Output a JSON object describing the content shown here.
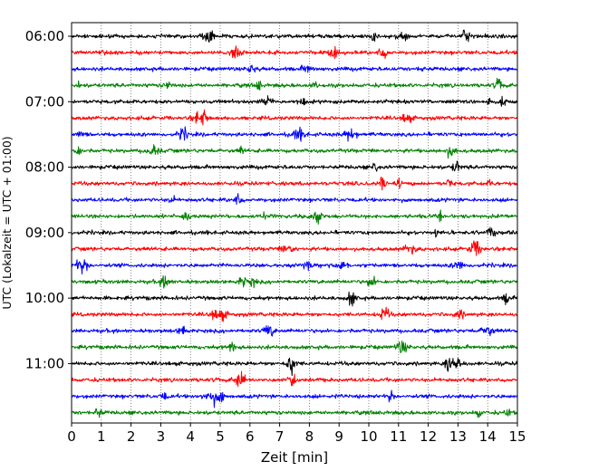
{
  "chart_data": {
    "type": "line",
    "xlabel": "Zeit  [min]",
    "ylabel": "UTC (Lokalzeit = UTC + 01:00)",
    "xlim": [
      0,
      15
    ],
    "x_ticks": [
      "0",
      "1",
      "2",
      "3",
      "4",
      "5",
      "6",
      "7",
      "8",
      "9",
      "10",
      "11",
      "12",
      "13",
      "14",
      "15"
    ],
    "y_tick_labels": [
      "06:00",
      "07:00",
      "08:00",
      "09:00",
      "10:00",
      "11:00"
    ],
    "grid": "vertical dotted",
    "trace_interval_minutes": 15,
    "color_cycle": [
      "#000000",
      "#ff0000",
      "#0000ff",
      "#008000"
    ],
    "traces": [
      {
        "start": "06:00",
        "color": "#000000"
      },
      {
        "start": "06:15",
        "color": "#ff0000"
      },
      {
        "start": "06:30",
        "color": "#0000ff"
      },
      {
        "start": "06:45",
        "color": "#008000"
      },
      {
        "start": "07:00",
        "color": "#000000"
      },
      {
        "start": "07:15",
        "color": "#ff0000"
      },
      {
        "start": "07:30",
        "color": "#0000ff"
      },
      {
        "start": "07:45",
        "color": "#008000"
      },
      {
        "start": "08:00",
        "color": "#000000"
      },
      {
        "start": "08:15",
        "color": "#ff0000"
      },
      {
        "start": "08:30",
        "color": "#0000ff"
      },
      {
        "start": "08:45",
        "color": "#008000"
      },
      {
        "start": "09:00",
        "color": "#000000"
      },
      {
        "start": "09:15",
        "color": "#ff0000"
      },
      {
        "start": "09:30",
        "color": "#0000ff"
      },
      {
        "start": "09:45",
        "color": "#008000"
      },
      {
        "start": "10:00",
        "color": "#000000"
      },
      {
        "start": "10:15",
        "color": "#ff0000"
      },
      {
        "start": "10:30",
        "color": "#0000ff"
      },
      {
        "start": "10:45",
        "color": "#008000"
      },
      {
        "start": "11:00",
        "color": "#000000"
      },
      {
        "start": "11:15",
        "color": "#ff0000"
      },
      {
        "start": "11:30",
        "color": "#0000ff"
      },
      {
        "start": "11:45",
        "color": "#008000"
      }
    ]
  }
}
